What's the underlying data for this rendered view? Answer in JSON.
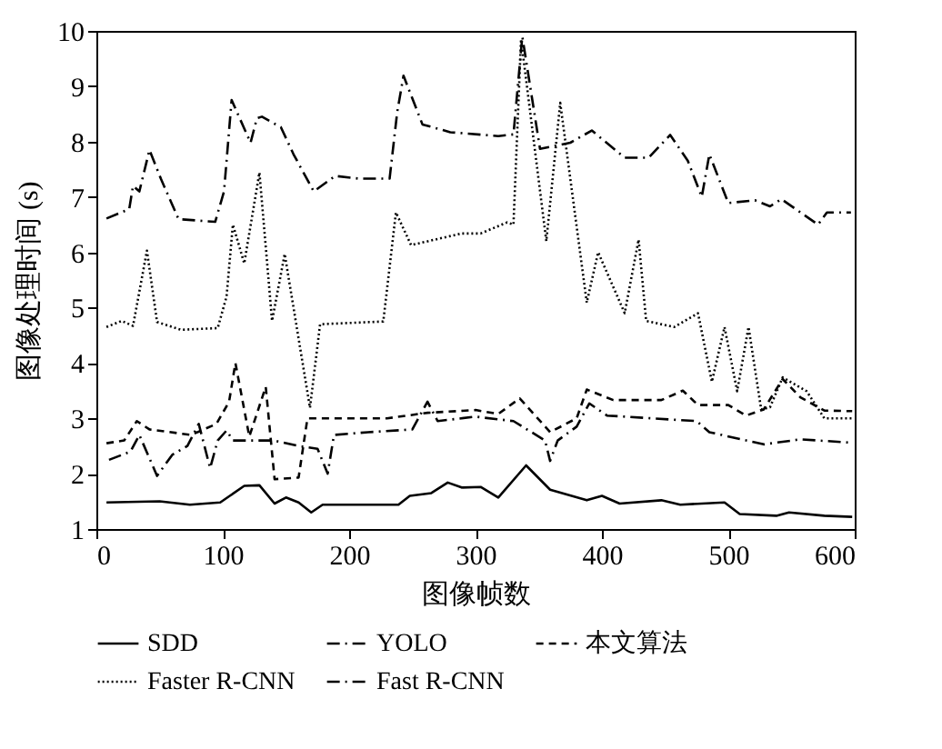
{
  "chart_data": {
    "type": "line",
    "xlabel": "图像帧数",
    "ylabel": "图像处理时间 (s)",
    "xlim": [
      0,
      600
    ],
    "xticks": [
      0,
      100,
      200,
      300,
      400,
      500,
      600
    ],
    "ylim": [
      1,
      10
    ],
    "yticks": [
      1,
      2,
      3,
      4,
      5,
      6,
      7,
      8,
      9,
      10
    ],
    "grid": false,
    "legend": "bottom",
    "marker": "none",
    "series": [
      {
        "name": "SDD",
        "color": "#000000",
        "line_style": "solid",
        "x": [
          8,
          50,
          74,
          98,
          117,
          129,
          141,
          150,
          160,
          170,
          179,
          239,
          248,
          265,
          278,
          289,
          304,
          318,
          340,
          359,
          388,
          400,
          414,
          447,
          462,
          497,
          509,
          538,
          548,
          576,
          598
        ],
        "values": [
          1.48,
          1.5,
          1.44,
          1.48,
          1.78,
          1.79,
          1.46,
          1.57,
          1.48,
          1.3,
          1.44,
          1.44,
          1.6,
          1.65,
          1.84,
          1.75,
          1.76,
          1.57,
          2.15,
          1.71,
          1.52,
          1.6,
          1.46,
          1.52,
          1.44,
          1.48,
          1.27,
          1.24,
          1.3,
          1.24,
          1.22
        ]
      },
      {
        "name": "YOLO",
        "color": "#000000",
        "line_style": "dashdot",
        "x": [
          10,
          27,
          34,
          48,
          60,
          72,
          81,
          90,
          96,
          103,
          108,
          140,
          160,
          175,
          183,
          188,
          215,
          250,
          262,
          270,
          300,
          330,
          355,
          359,
          365,
          380,
          390,
          404,
          475,
          485,
          528,
          557,
          598
        ],
        "values": [
          2.25,
          2.4,
          2.7,
          1.96,
          2.34,
          2.5,
          2.9,
          2.1,
          2.6,
          2.78,
          2.6,
          2.6,
          2.5,
          2.45,
          2.0,
          2.7,
          2.75,
          2.8,
          3.3,
          2.95,
          3.03,
          2.95,
          2.6,
          2.23,
          2.6,
          2.85,
          3.27,
          3.05,
          2.95,
          2.75,
          2.53,
          2.62,
          2.56
        ]
      },
      {
        "name": "本文算法",
        "color": "#000000",
        "line_style": "dashed",
        "x": [
          8,
          22,
          32,
          42,
          75,
          95,
          105,
          110,
          121,
          134,
          141,
          160,
          167,
          230,
          262,
          300,
          318,
          335,
          359,
          380,
          388,
          409,
          447,
          464,
          476,
          500,
          514,
          528,
          543,
          557,
          576,
          598
        ],
        "values": [
          2.55,
          2.6,
          2.95,
          2.8,
          2.7,
          2.9,
          3.3,
          4.0,
          2.67,
          3.57,
          1.9,
          1.93,
          3.0,
          3.0,
          3.1,
          3.15,
          3.08,
          3.36,
          2.75,
          3.0,
          3.52,
          3.33,
          3.33,
          3.5,
          3.24,
          3.24,
          3.05,
          3.16,
          3.71,
          3.38,
          3.14,
          3.13
        ]
      },
      {
        "name": "Faster R-CNN",
        "color": "#000000",
        "line_style": "dotted",
        "x": [
          8,
          20,
          29,
          40,
          48,
          67,
          96,
          103,
          108,
          117,
          129,
          139,
          149,
          169,
          177,
          227,
          237,
          249,
          289,
          304,
          325,
          330,
          336,
          356,
          367,
          388,
          397,
          418,
          429,
          435,
          457,
          476,
          487,
          497,
          507,
          516,
          526,
          533,
          543,
          562,
          576,
          598
        ],
        "values": [
          4.65,
          4.76,
          4.67,
          6.03,
          4.74,
          4.6,
          4.63,
          5.2,
          6.5,
          5.8,
          7.44,
          4.76,
          5.97,
          3.19,
          4.7,
          4.75,
          6.72,
          6.13,
          6.34,
          6.34,
          6.54,
          6.5,
          9.85,
          6.2,
          8.7,
          5.09,
          6.0,
          4.9,
          6.23,
          4.76,
          4.65,
          4.9,
          3.66,
          4.65,
          3.49,
          4.65,
          3.16,
          3.2,
          3.74,
          3.49,
          3.0,
          3.0
        ]
      },
      {
        "name": "Fast R-CNN",
        "color": "#000000",
        "line_style": "dashdot",
        "x": [
          8,
          26,
          29,
          34,
          42,
          51,
          65,
          94,
          101,
          107,
          122,
          127,
          131,
          146,
          156,
          172,
          189,
          208,
          232,
          238,
          243,
          258,
          280,
          318,
          330,
          337,
          351,
          375,
          392,
          418,
          437,
          454,
          468,
          479,
          485,
          500,
          521,
          533,
          542,
          571,
          578,
          597
        ],
        "values": [
          6.61,
          6.78,
          7.2,
          7.1,
          7.85,
          7.33,
          6.6,
          6.55,
          7.1,
          8.75,
          7.98,
          8.42,
          8.45,
          8.26,
          7.77,
          7.1,
          7.38,
          7.33,
          7.33,
          8.53,
          9.19,
          8.31,
          8.17,
          8.1,
          8.13,
          9.9,
          7.87,
          7.98,
          8.2,
          7.71,
          7.71,
          8.12,
          7.65,
          7.0,
          7.77,
          6.89,
          6.94,
          6.83,
          6.96,
          6.5,
          6.72,
          6.72
        ]
      }
    ]
  }
}
